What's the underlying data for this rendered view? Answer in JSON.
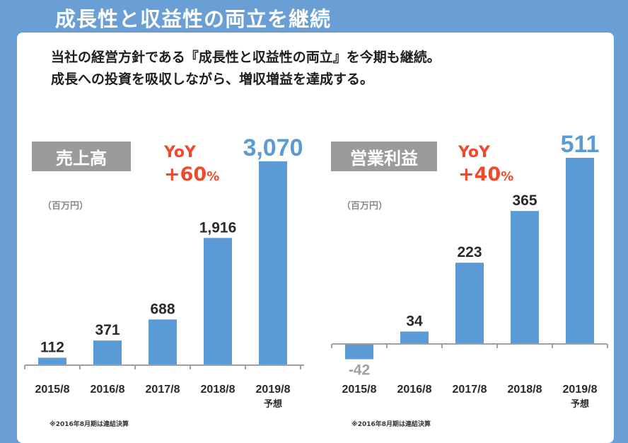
{
  "header": {
    "title": "成長性と収益性の両立を継続"
  },
  "lead": {
    "line1": "当社の経営方針である『成長性と収益性の両立』を今期も継続。",
    "line2": "成長への投資を吸収しながら、増収増益を達成する。"
  },
  "colors": {
    "bar": "#5b9bd5",
    "highlight_label": "#5b9bd5",
    "yoy": "#ee4a2b",
    "axis": "#a0a0a0",
    "negative_label": "#a0a0a0",
    "title_box": "#9b9b9b"
  },
  "chart_data": [
    {
      "type": "bar",
      "title": "売上高",
      "unit": "（百万円）",
      "yoy": {
        "label": "YoY",
        "value": "+60",
        "suffix": "%"
      },
      "categories": [
        "2015/8",
        "2016/8",
        "2017/8",
        "2018/8",
        "2019/8"
      ],
      "category_notes": [
        "",
        "",
        "",
        "",
        "予想"
      ],
      "values": [
        112,
        371,
        688,
        1916,
        3070
      ],
      "value_labels": [
        "112",
        "371",
        "688",
        "1,916",
        "3,070"
      ],
      "ylim": [
        0,
        3070
      ],
      "note": "※2016年8月期は連結決算"
    },
    {
      "type": "bar",
      "title": "営業利益",
      "unit": "（百万円）",
      "yoy": {
        "label": "YoY",
        "value": "+40",
        "suffix": "%"
      },
      "categories": [
        "2015/8",
        "2016/8",
        "2017/8",
        "2018/8",
        "2019/8"
      ],
      "category_notes": [
        "",
        "",
        "",
        "",
        "予想"
      ],
      "values": [
        -42,
        34,
        223,
        365,
        511
      ],
      "value_labels": [
        "-42",
        "34",
        "223",
        "365",
        "511"
      ],
      "ylim": [
        -42,
        511
      ],
      "note": "※2016年8月期は連結決算"
    }
  ]
}
